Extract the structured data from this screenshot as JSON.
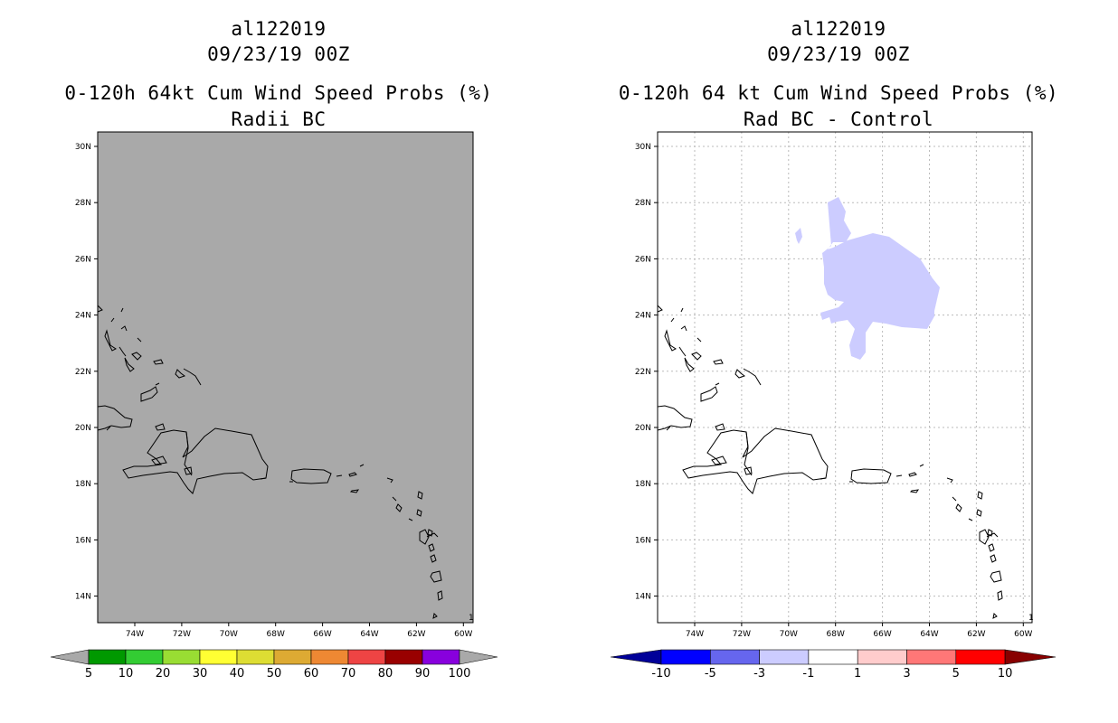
{
  "left": {
    "storm_id": "al122019",
    "datetime": "09/23/19 00Z",
    "title": "0-120h 64kt Cum Wind Speed Probs (%)",
    "subtitle": "Radii BC",
    "colorbar": {
      "labels": [
        "5",
        "10",
        "20",
        "30",
        "40",
        "50",
        "60",
        "70",
        "80",
        "90",
        "100"
      ],
      "colors": [
        "#009900",
        "#33cc33",
        "#99dd33",
        "#ffff33",
        "#dddd33",
        "#ddaa33",
        "#ee8833",
        "#ee4444",
        "#990000",
        "#8800dd"
      ]
    },
    "background": "#a9a9a9"
  },
  "right": {
    "storm_id": "al122019",
    "datetime": "09/23/19 00Z",
    "title": "0-120h 64 kt Cum Wind Speed Probs (%)",
    "subtitle": "Rad BC - Control",
    "colorbar": {
      "labels": [
        "-10",
        "-5",
        "-3",
        "-1",
        "1",
        "3",
        "5",
        "10"
      ],
      "colors": [
        "#0000ff",
        "#6666ee",
        "#ccccff",
        "#ffffff",
        "#ffcccc",
        "#ff7777",
        "#ff0000"
      ],
      "end_low": "#000099",
      "end_high": "#880000"
    },
    "anomaly_color": "#ccccff"
  },
  "axes": {
    "lat_labels": [
      "30N",
      "28N",
      "26N",
      "24N",
      "22N",
      "20N",
      "18N",
      "16N",
      "14N"
    ],
    "lon_labels": [
      "74W",
      "72W",
      "70W",
      "68W",
      "66W",
      "64W",
      "62W",
      "60W"
    ],
    "corner_mark": "1"
  }
}
